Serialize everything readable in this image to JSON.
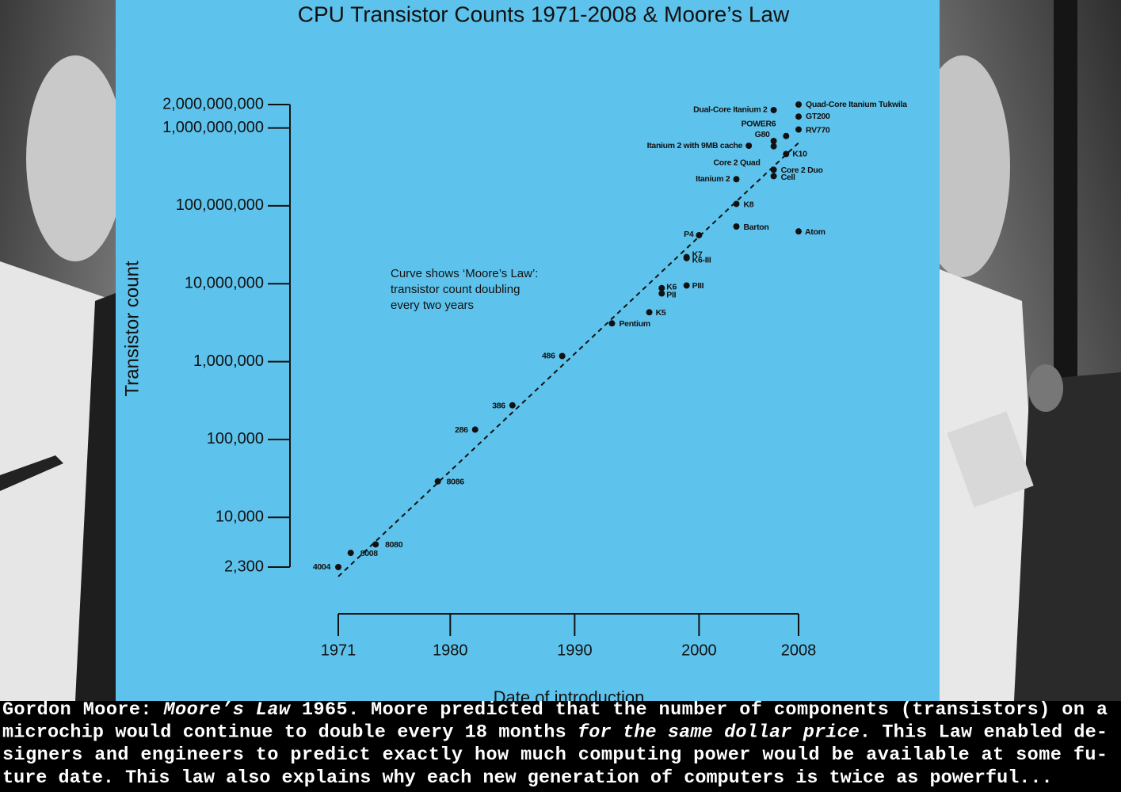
{
  "chart_data": {
    "type": "scatter",
    "title": "CPU Transistor Counts 1971-2008 & Moore’s Law",
    "x_label": "Date of introduction",
    "y_label": "Transistor count",
    "annotation": [
      "Curve shows ‘Moore’s Law’:",
      "transistor count doubling",
      "every two years"
    ],
    "xlim": [
      1971,
      2008
    ],
    "xticks": [
      1971,
      1980,
      1990,
      2000,
      2008
    ],
    "ylim": [
      2300,
      2000000000
    ],
    "ylog": true,
    "yticks": [
      {
        "value": 2300,
        "label": "2,300"
      },
      {
        "value": 10000,
        "label": "10,000"
      },
      {
        "value": 100000,
        "label": "100,000"
      },
      {
        "value": 1000000,
        "label": "1,000,000"
      },
      {
        "value": 10000000,
        "label": "10,000,000"
      },
      {
        "value": 100000000,
        "label": "100,000,000"
      },
      {
        "value": 1000000000,
        "label": "1,000,000,000"
      },
      {
        "value": 2000000000,
        "label": "2,000,000,000"
      }
    ],
    "series": [
      {
        "color": "#111111",
        "labels": [
          "4004",
          "8008",
          "8080",
          "8086",
          "286",
          "386",
          "486",
          "Pentium",
          "K5",
          "K6",
          "PII",
          "PIII",
          "K7",
          "K6-III",
          "P4",
          "Barton",
          "K8",
          "Itanium 2",
          "Atom",
          "Cell",
          "Core 2 Duo",
          "Core 2 Quad",
          "Itanium 2 with 9MB cache",
          "G80",
          "POWER6",
          "K10",
          "Dual-Core Itanium 2",
          "Quad-Core Itanium Tukwila",
          "GT200",
          "RV770"
        ],
        "x": [
          1971,
          1972,
          1974,
          1979,
          1982,
          1985,
          1989,
          1993,
          1996,
          1997,
          1997,
          1999,
          1999,
          1999,
          2000,
          2003,
          2003,
          2003,
          2008,
          2006,
          2006,
          2006,
          2004,
          2006,
          2007,
          2007,
          2006,
          2008,
          2008,
          2008
        ],
        "values": [
          2300,
          3500,
          4500,
          29000,
          134000,
          275000,
          1180000,
          3100000,
          4300000,
          8800000,
          7500000,
          9500000,
          22000000,
          21300000,
          42000000,
          54300000,
          105900000,
          220000000,
          47000000,
          241000000,
          291000000,
          582000000,
          592000000,
          681000000,
          789000000,
          463000000,
          1700000000,
          2000000000,
          1400000000,
          956000000
        ]
      }
    ],
    "trend": {
      "style": "dashed",
      "x": [
        1971,
        2008
      ],
      "values": [
        1740,
        645000000
      ]
    }
  },
  "caption": {
    "lines": [
      [
        "Gordon Moore: ",
        "Moore’s Law",
        " 1965. Moore predicted that the number of components (transistors) on a"
      ],
      [
        "microchip would continue to double every 18 months ",
        "for the same dollar price",
        ". This Law enabled de-"
      ],
      [
        "signers and engineers to predict exactly how much computing power would be available at some fu-"
      ],
      [
        "ture date. This law also explains why each new generation of computers is twice as powerful..."
      ]
    ]
  }
}
